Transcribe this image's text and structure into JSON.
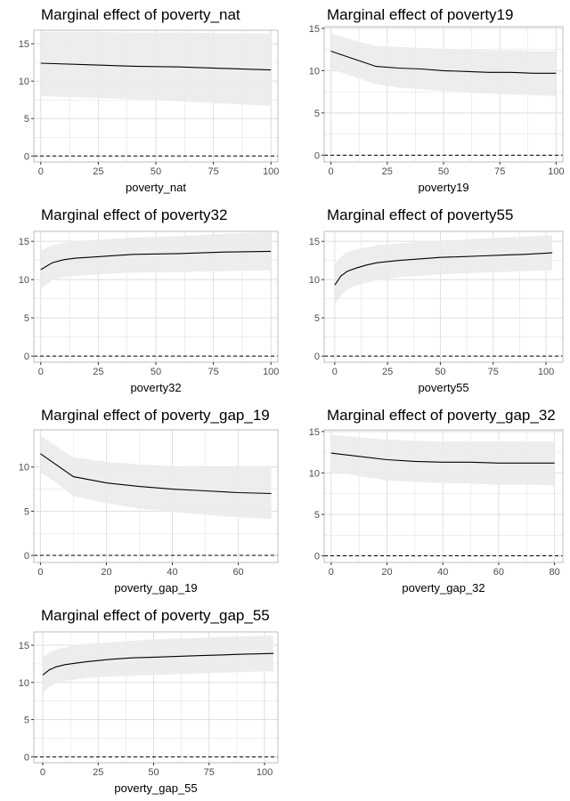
{
  "chart_data": [
    {
      "type": "line",
      "title": "Marginal effect of poverty_nat",
      "xlabel": "poverty_nat",
      "ylabel": "",
      "xlim": [
        -3,
        103
      ],
      "ylim": [
        -0.8,
        16.8
      ],
      "x_ticks": [
        0,
        25,
        50,
        75,
        100
      ],
      "y_ticks": [
        0,
        5,
        10,
        15
      ],
      "series": [
        {
          "x": [
            0,
            20,
            40,
            60,
            80,
            100
          ],
          "y": [
            12.4,
            12.2,
            12.0,
            11.9,
            11.7,
            11.5
          ],
          "lower": [
            8.0,
            7.8,
            7.6,
            7.3,
            7.0,
            6.7
          ],
          "upper": [
            16.6,
            16.6,
            16.5,
            16.5,
            16.4,
            16.4
          ]
        }
      ],
      "reference_line": 0,
      "grid": true,
      "legend": "none"
    },
    {
      "type": "line",
      "title": "Marginal effect of poverty19",
      "xlabel": "poverty19",
      "ylabel": "",
      "xlim": [
        -3,
        103
      ],
      "ylim": [
        -0.8,
        15.2
      ],
      "x_ticks": [
        0,
        25,
        50,
        75,
        100
      ],
      "y_ticks": [
        0,
        5,
        10,
        15
      ],
      "series": [
        {
          "x": [
            0,
            10,
            20,
            30,
            40,
            50,
            60,
            70,
            80,
            90,
            100
          ],
          "y": [
            12.3,
            11.4,
            10.5,
            10.3,
            10.2,
            10.0,
            9.9,
            9.8,
            9.8,
            9.7,
            9.7
          ],
          "lower": [
            10.2,
            9.3,
            8.4,
            8.0,
            7.8,
            7.6,
            7.4,
            7.3,
            7.2,
            7.1,
            7.0
          ],
          "upper": [
            14.4,
            13.6,
            12.9,
            12.8,
            12.7,
            12.6,
            12.5,
            12.4,
            12.4,
            12.3,
            12.3
          ]
        }
      ],
      "reference_line": 0,
      "grid": true,
      "legend": "none"
    },
    {
      "type": "line",
      "title": "Marginal effect of poverty32",
      "xlabel": "poverty32",
      "ylabel": "",
      "xlim": [
        -3,
        103
      ],
      "ylim": [
        -0.8,
        16.3
      ],
      "x_ticks": [
        0,
        25,
        50,
        75,
        100
      ],
      "y_ticks": [
        0,
        5,
        10,
        15
      ],
      "series": [
        {
          "x": [
            0,
            5,
            10,
            15,
            25,
            40,
            60,
            80,
            100
          ],
          "y": [
            11.3,
            12.2,
            12.6,
            12.8,
            13.0,
            13.3,
            13.4,
            13.6,
            13.7
          ],
          "lower": [
            8.8,
            9.9,
            10.3,
            10.5,
            10.7,
            10.9,
            11.0,
            11.1,
            11.2
          ],
          "upper": [
            13.8,
            14.5,
            14.8,
            15.0,
            15.2,
            15.5,
            15.7,
            16.0,
            16.2
          ]
        }
      ],
      "reference_line": 0,
      "grid": true,
      "legend": "none"
    },
    {
      "type": "line",
      "title": "Marginal effect of poverty55",
      "xlabel": "poverty55",
      "ylabel": "",
      "xlim": [
        -5,
        108
      ],
      "ylim": [
        -0.8,
        16.3
      ],
      "x_ticks": [
        0,
        25,
        50,
        75,
        100
      ],
      "y_ticks": [
        0,
        5,
        10,
        15
      ],
      "series": [
        {
          "x": [
            0,
            3,
            6,
            10,
            15,
            20,
            30,
            40,
            50,
            60,
            70,
            80,
            90,
            103
          ],
          "y": [
            9.3,
            10.5,
            11.1,
            11.5,
            11.9,
            12.2,
            12.5,
            12.7,
            12.9,
            13.0,
            13.1,
            13.2,
            13.3,
            13.5
          ],
          "lower": [
            6.7,
            8.0,
            8.7,
            9.2,
            9.6,
            9.9,
            10.3,
            10.5,
            10.7,
            10.8,
            10.9,
            11.0,
            11.1,
            11.2
          ],
          "upper": [
            11.9,
            13.0,
            13.6,
            13.9,
            14.2,
            14.5,
            14.7,
            14.9,
            15.1,
            15.2,
            15.4,
            15.5,
            15.6,
            15.8
          ]
        }
      ],
      "reference_line": 0,
      "grid": true,
      "legend": "none"
    },
    {
      "type": "line",
      "title": "Marginal effect of poverty_gap_19",
      "xlabel": "poverty_gap_19",
      "ylabel": "",
      "xlim": [
        -2,
        72
      ],
      "ylim": [
        -0.8,
        14.2
      ],
      "x_ticks": [
        0,
        20,
        40,
        60
      ],
      "y_ticks": [
        0,
        5,
        10
      ],
      "series": [
        {
          "x": [
            0,
            5,
            10,
            20,
            30,
            40,
            50,
            60,
            70
          ],
          "y": [
            11.5,
            10.2,
            8.9,
            8.2,
            7.8,
            7.5,
            7.3,
            7.1,
            7.0
          ],
          "lower": [
            9.4,
            8.2,
            6.7,
            5.9,
            5.3,
            4.9,
            4.6,
            4.3,
            4.1
          ],
          "upper": [
            13.6,
            12.3,
            11.1,
            10.6,
            10.3,
            10.1,
            10.0,
            9.9,
            9.9
          ]
        }
      ],
      "reference_line": 0,
      "grid": true,
      "legend": "none"
    },
    {
      "type": "line",
      "title": "Marginal effect of poverty_gap_32",
      "xlabel": "poverty_gap_32",
      "ylabel": "",
      "xlim": [
        -2.5,
        83
      ],
      "ylim": [
        -0.8,
        15.2
      ],
      "x_ticks": [
        0,
        20,
        40,
        60,
        80
      ],
      "y_ticks": [
        0,
        5,
        10,
        15
      ],
      "series": [
        {
          "x": [
            0,
            10,
            20,
            30,
            40,
            50,
            60,
            70,
            80
          ],
          "y": [
            12.4,
            12.0,
            11.6,
            11.4,
            11.3,
            11.3,
            11.2,
            11.2,
            11.2
          ],
          "lower": [
            10.2,
            9.6,
            9.1,
            8.9,
            8.8,
            8.7,
            8.6,
            8.6,
            8.5
          ],
          "upper": [
            14.6,
            14.3,
            14.0,
            13.9,
            13.8,
            13.8,
            13.8,
            13.8,
            13.8
          ]
        }
      ],
      "reference_line": 0,
      "grid": true,
      "legend": "none"
    },
    {
      "type": "line",
      "title": "Marginal effect of poverty_gap_55",
      "xlabel": "poverty_gap_55",
      "ylabel": "",
      "xlim": [
        -4,
        106
      ],
      "ylim": [
        -0.8,
        16.8
      ],
      "x_ticks": [
        0,
        25,
        50,
        75,
        100
      ],
      "y_ticks": [
        0,
        5,
        10,
        15
      ],
      "series": [
        {
          "x": [
            0,
            3,
            6,
            10,
            15,
            20,
            30,
            40,
            50,
            60,
            70,
            80,
            90,
            104
          ],
          "y": [
            11.0,
            11.7,
            12.1,
            12.4,
            12.6,
            12.8,
            13.1,
            13.3,
            13.4,
            13.5,
            13.6,
            13.7,
            13.8,
            13.9
          ],
          "lower": [
            8.6,
            9.4,
            9.9,
            10.2,
            10.4,
            10.6,
            10.8,
            10.9,
            11.0,
            11.1,
            11.2,
            11.3,
            11.4,
            11.5
          ],
          "upper": [
            13.4,
            14.0,
            14.4,
            14.7,
            15.0,
            15.2,
            15.4,
            15.6,
            15.8,
            15.9,
            16.0,
            16.1,
            16.2,
            16.3
          ]
        }
      ],
      "reference_line": 0,
      "grid": true,
      "legend": "none"
    }
  ],
  "colors": {
    "ribbon": "#ebebeb",
    "line": "#000000",
    "grid": "#dedede",
    "panel_border": "#bdbdbd",
    "tick_text": "#4d4d4d"
  }
}
